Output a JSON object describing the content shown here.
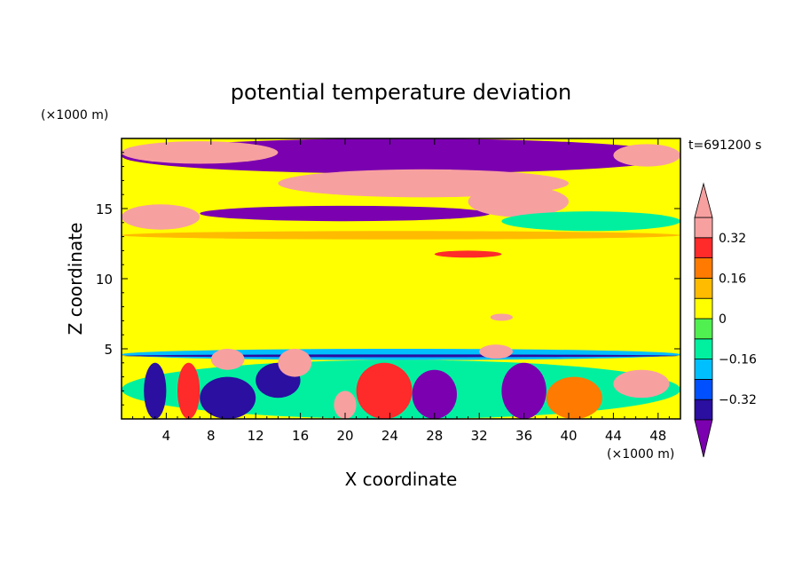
{
  "chart_data": {
    "type": "heatmap",
    "title": "potential temperature deviation",
    "xlabel": "X coordinate",
    "ylabel": "Z coordinate",
    "x_unit": "(×1000 m)",
    "y_unit": "(×1000 m)",
    "time_label": "t=691200 s",
    "xlim": [
      0,
      50
    ],
    "ylim": [
      0,
      20
    ],
    "x_ticks": [
      4,
      8,
      12,
      16,
      20,
      24,
      28,
      32,
      36,
      40,
      44,
      48
    ],
    "y_ticks": [
      5,
      10,
      15
    ],
    "colorbar": {
      "levels": [
        -0.4,
        -0.32,
        -0.24,
        -0.16,
        -0.08,
        0,
        0.08,
        0.16,
        0.24,
        0.32,
        0.4
      ],
      "tick_values": [
        0.32,
        0.16,
        0,
        -0.16,
        -0.32
      ],
      "tick_labels": [
        "0.32",
        "0.16",
        "0",
        "−0.16",
        "−0.32"
      ],
      "colors": [
        "#7b00b0",
        "#2a0fa0",
        "#0050ff",
        "#00bfff",
        "#00f0a0",
        "#50f050",
        "#ffff00",
        "#ffbb00",
        "#ff7a00",
        "#ff2a2a",
        "#f7a0a0"
      ],
      "extend": "both"
    },
    "regions": [
      {
        "x": [
          0,
          50
        ],
        "z": [
          0,
          20
        ],
        "value": 0.02
      },
      {
        "x": [
          0,
          50
        ],
        "z": [
          17.5,
          20
        ],
        "value": -0.45
      },
      {
        "x": [
          0,
          14
        ],
        "z": [
          18.2,
          19.8
        ],
        "value": 0.45
      },
      {
        "x": [
          14,
          40
        ],
        "z": [
          15.8,
          17.8
        ],
        "value": 0.45
      },
      {
        "x": [
          0,
          7
        ],
        "z": [
          13.5,
          15.3
        ],
        "value": 0.45
      },
      {
        "x": [
          7,
          33
        ],
        "z": [
          14.1,
          15.2
        ],
        "value": -0.45
      },
      {
        "x": [
          31,
          40
        ],
        "z": [
          14.4,
          16.6
        ],
        "value": 0.45
      },
      {
        "x": [
          34,
          50
        ],
        "z": [
          13.4,
          14.8
        ],
        "value": -0.16
      },
      {
        "x": [
          44,
          50
        ],
        "z": [
          18.0,
          19.6
        ],
        "value": 0.45
      },
      {
        "x": [
          0,
          50
        ],
        "z": [
          12.8,
          13.4
        ],
        "value": 0.1
      },
      {
        "x": [
          28,
          34
        ],
        "z": [
          11.5,
          12.0
        ],
        "value": 0.28
      },
      {
        "x": [
          0,
          50
        ],
        "z": [
          5.0,
          7.5
        ],
        "value": 0.0
      },
      {
        "x": [
          0,
          50
        ],
        "z": [
          4.2,
          5.0
        ],
        "value": -0.2
      },
      {
        "x": [
          0,
          50
        ],
        "z": [
          4.4,
          4.6
        ],
        "value": -0.35
      },
      {
        "x": [
          0,
          50
        ],
        "z": [
          0,
          4.2
        ],
        "value": -0.1
      },
      {
        "x": [
          2,
          4
        ],
        "z": [
          0,
          4.0
        ],
        "value": -0.4
      },
      {
        "x": [
          5,
          7
        ],
        "z": [
          0,
          4.0
        ],
        "value": 0.3
      },
      {
        "x": [
          7,
          12
        ],
        "z": [
          0,
          3.0
        ],
        "value": -0.4
      },
      {
        "x": [
          12,
          16
        ],
        "z": [
          1.5,
          4.0
        ],
        "value": -0.4
      },
      {
        "x": [
          19,
          21
        ],
        "z": [
          0,
          2.0
        ],
        "value": 0.45
      },
      {
        "x": [
          21,
          26
        ],
        "z": [
          0,
          4.0
        ],
        "value": 0.28
      },
      {
        "x": [
          26,
          30
        ],
        "z": [
          0,
          3.5
        ],
        "value": -0.45
      },
      {
        "x": [
          34,
          38
        ],
        "z": [
          0,
          4.0
        ],
        "value": -0.45
      },
      {
        "x": [
          38,
          43
        ],
        "z": [
          0,
          3.0
        ],
        "value": 0.18
      },
      {
        "x": [
          44,
          49
        ],
        "z": [
          1.5,
          3.5
        ],
        "value": 0.45
      },
      {
        "x": [
          8,
          11
        ],
        "z": [
          3.5,
          5.0
        ],
        "value": 0.45
      },
      {
        "x": [
          14,
          17
        ],
        "z": [
          3.0,
          5.0
        ],
        "value": 0.45
      },
      {
        "x": [
          33,
          35
        ],
        "z": [
          7.0,
          7.5
        ],
        "value": 0.45
      },
      {
        "x": [
          32,
          35
        ],
        "z": [
          4.3,
          5.3
        ],
        "value": 0.45
      }
    ]
  }
}
